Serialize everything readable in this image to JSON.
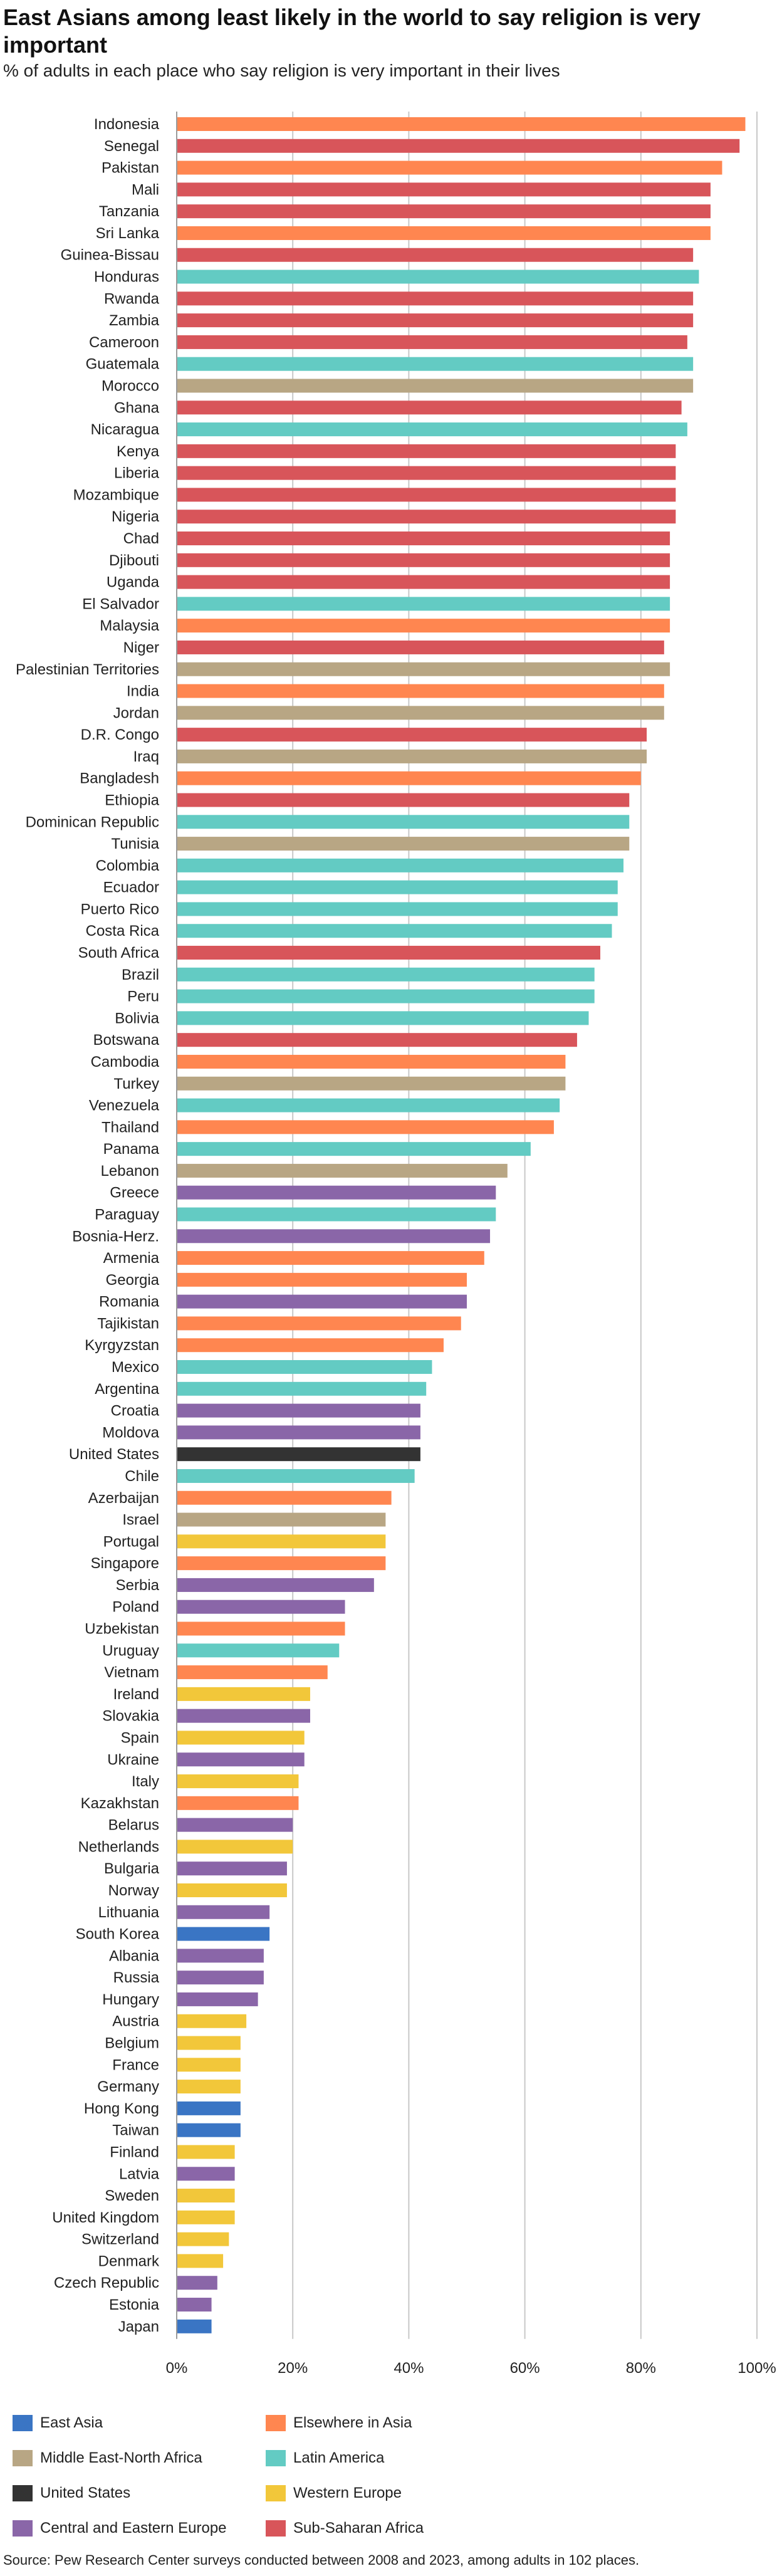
{
  "header": {
    "title": "East Asians among least likely in the world to say religion is very important",
    "subtitle": "% of adults in each place who say religion is very important in their lives"
  },
  "source": "Source: Pew Research Center surveys conducted between 2008 and 2023, among adults in 102 places.",
  "colors": {
    "East Asia": "#3a75c4",
    "Elsewhere in Asia": "#ff8650",
    "Middle East-North Africa": "#b8a684",
    "Latin America": "#63cbc3",
    "United States": "#333333",
    "Western Europe": "#f2c73a",
    "Central and Eastern Europe": "#8a66a8",
    "Sub-Saharan Africa": "#d8555a"
  },
  "legend": [
    "East Asia",
    "Elsewhere in Asia",
    "Middle East-North Africa",
    "Latin America",
    "United States",
    "Western Europe",
    "Central and Eastern Europe",
    "Sub-Saharan Africa"
  ],
  "chart_data": {
    "type": "bar",
    "orientation": "horizontal",
    "xlim": [
      0,
      100
    ],
    "ticks": [
      "0%",
      "20%",
      "40%",
      "60%",
      "80%",
      "100%"
    ],
    "tick_values": [
      0,
      20,
      40,
      60,
      80,
      100
    ],
    "grid": true,
    "categories": [
      "Indonesia",
      "Senegal",
      "Pakistan",
      "Mali",
      "Tanzania",
      "Sri Lanka",
      "Guinea-Bissau",
      "Honduras",
      "Rwanda",
      "Zambia",
      "Cameroon",
      "Guatemala",
      "Morocco",
      "Ghana",
      "Nicaragua",
      "Kenya",
      "Liberia",
      "Mozambique",
      "Nigeria",
      "Chad",
      "Djibouti",
      "Uganda",
      "El Salvador",
      "Malaysia",
      "Niger",
      "Palestinian Territories",
      "India",
      "Jordan",
      "D.R. Congo",
      "Iraq",
      "Bangladesh",
      "Ethiopia",
      "Dominican Republic",
      "Tunisia",
      "Colombia",
      "Ecuador",
      "Puerto Rico",
      "Costa Rica",
      "South Africa",
      "Brazil",
      "Peru",
      "Bolivia",
      "Botswana",
      "Cambodia",
      "Turkey",
      "Venezuela",
      "Thailand",
      "Panama",
      "Lebanon",
      "Greece",
      "Paraguay",
      "Bosnia-Herz.",
      "Armenia",
      "Georgia",
      "Romania",
      "Tajikistan",
      "Kyrgyzstan",
      "Mexico",
      "Argentina",
      "Croatia",
      "Moldova",
      "United States",
      "Chile",
      "Azerbaijan",
      "Israel",
      "Portugal",
      "Singapore",
      "Serbia",
      "Poland",
      "Uzbekistan",
      "Uruguay",
      "Vietnam",
      "Ireland",
      "Slovakia",
      "Spain",
      "Ukraine",
      "Italy",
      "Kazakhstan",
      "Belarus",
      "Netherlands",
      "Bulgaria",
      "Norway",
      "Lithuania",
      "South Korea",
      "Albania",
      "Russia",
      "Hungary",
      "Austria",
      "Belgium",
      "France",
      "Germany",
      "Hong Kong",
      "Taiwan",
      "Finland",
      "Latvia",
      "Sweden",
      "United Kingdom",
      "Switzerland",
      "Denmark",
      "Czech Republic",
      "Estonia",
      "Japan"
    ],
    "values": [
      98,
      97,
      94,
      92,
      92,
      92,
      89,
      90,
      89,
      89,
      88,
      89,
      89,
      87,
      88,
      86,
      86,
      86,
      86,
      85,
      85,
      85,
      85,
      85,
      84,
      85,
      84,
      84,
      81,
      81,
      80,
      78,
      78,
      78,
      77,
      76,
      76,
      75,
      73,
      72,
      72,
      71,
      69,
      67,
      67,
      66,
      65,
      61,
      57,
      55,
      55,
      54,
      53,
      50,
      50,
      49,
      46,
      44,
      43,
      42,
      42,
      42,
      41,
      37,
      36,
      36,
      36,
      34,
      29,
      29,
      28,
      26,
      23,
      23,
      22,
      22,
      21,
      21,
      20,
      20,
      19,
      19,
      16,
      16,
      15,
      15,
      14,
      12,
      11,
      11,
      11,
      11,
      11,
      10,
      10,
      10,
      10,
      9,
      8,
      7,
      6,
      6
    ],
    "regions": [
      "Elsewhere in Asia",
      "Sub-Saharan Africa",
      "Elsewhere in Asia",
      "Sub-Saharan Africa",
      "Sub-Saharan Africa",
      "Elsewhere in Asia",
      "Sub-Saharan Africa",
      "Latin America",
      "Sub-Saharan Africa",
      "Sub-Saharan Africa",
      "Sub-Saharan Africa",
      "Latin America",
      "Middle East-North Africa",
      "Sub-Saharan Africa",
      "Latin America",
      "Sub-Saharan Africa",
      "Sub-Saharan Africa",
      "Sub-Saharan Africa",
      "Sub-Saharan Africa",
      "Sub-Saharan Africa",
      "Sub-Saharan Africa",
      "Sub-Saharan Africa",
      "Latin America",
      "Elsewhere in Asia",
      "Sub-Saharan Africa",
      "Middle East-North Africa",
      "Elsewhere in Asia",
      "Middle East-North Africa",
      "Sub-Saharan Africa",
      "Middle East-North Africa",
      "Elsewhere in Asia",
      "Sub-Saharan Africa",
      "Latin America",
      "Middle East-North Africa",
      "Latin America",
      "Latin America",
      "Latin America",
      "Latin America",
      "Sub-Saharan Africa",
      "Latin America",
      "Latin America",
      "Latin America",
      "Sub-Saharan Africa",
      "Elsewhere in Asia",
      "Middle East-North Africa",
      "Latin America",
      "Elsewhere in Asia",
      "Latin America",
      "Middle East-North Africa",
      "Central and Eastern Europe",
      "Latin America",
      "Central and Eastern Europe",
      "Elsewhere in Asia",
      "Elsewhere in Asia",
      "Central and Eastern Europe",
      "Elsewhere in Asia",
      "Elsewhere in Asia",
      "Latin America",
      "Latin America",
      "Central and Eastern Europe",
      "Central and Eastern Europe",
      "United States",
      "Latin America",
      "Elsewhere in Asia",
      "Middle East-North Africa",
      "Western Europe",
      "Elsewhere in Asia",
      "Central and Eastern Europe",
      "Central and Eastern Europe",
      "Elsewhere in Asia",
      "Latin America",
      "Elsewhere in Asia",
      "Western Europe",
      "Central and Eastern Europe",
      "Western Europe",
      "Central and Eastern Europe",
      "Western Europe",
      "Elsewhere in Asia",
      "Central and Eastern Europe",
      "Western Europe",
      "Central and Eastern Europe",
      "Western Europe",
      "Central and Eastern Europe",
      "East Asia",
      "Central and Eastern Europe",
      "Central and Eastern Europe",
      "Central and Eastern Europe",
      "Western Europe",
      "Western Europe",
      "Western Europe",
      "Western Europe",
      "East Asia",
      "East Asia",
      "Western Europe",
      "Central and Eastern Europe",
      "Western Europe",
      "Western Europe",
      "Western Europe",
      "Western Europe",
      "Central and Eastern Europe",
      "Central and Eastern Europe",
      "East Asia"
    ]
  }
}
